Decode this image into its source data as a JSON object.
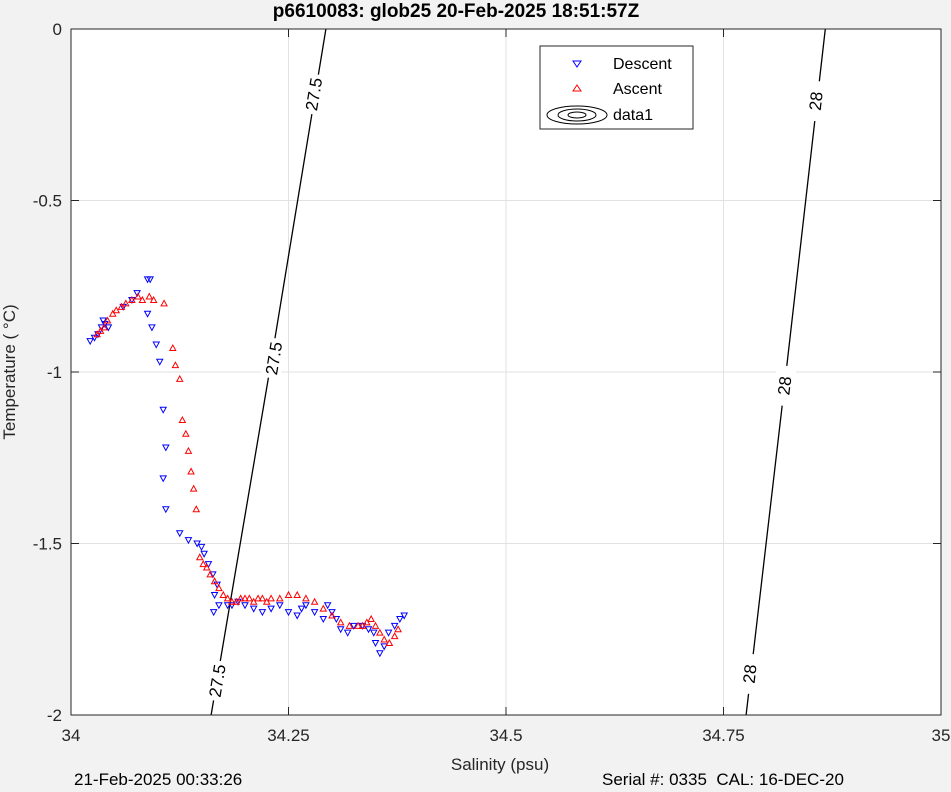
{
  "chart_data": {
    "type": "scatter",
    "title": "p6610083: glob25 20-Feb-2025 18:51:57Z",
    "xlabel": "Salinity (psu)",
    "ylabel": "Temperature (  °C)",
    "xlim": [
      34,
      35
    ],
    "ylim": [
      -2,
      0
    ],
    "xticks": [
      "34",
      "34.25",
      "34.5",
      "34.75",
      "35"
    ],
    "yticks": [
      "0",
      "-0.5",
      "-1",
      "-1.5",
      "-2"
    ],
    "xtick_values": [
      34,
      34.25,
      34.5,
      34.75,
      35
    ],
    "ytick_values": [
      0,
      -0.5,
      -1,
      -1.5,
      -2
    ],
    "grid": true,
    "legend": {
      "placement": "top-center",
      "entries": [
        {
          "label": "Descent",
          "color": "#0000ff",
          "marker": "triangle-down"
        },
        {
          "label": "Ascent",
          "color": "#ff0000",
          "marker": "triangle-up"
        },
        {
          "label": "data1",
          "color": "#000000",
          "marker": "contour"
        }
      ]
    },
    "contours": [
      {
        "level_label": "27.5",
        "points": [
          [
            34.161,
            -2.0
          ],
          [
            34.228,
            -1.0
          ],
          [
            34.293,
            0.0
          ]
        ],
        "label_positions": [
          [
            34.168,
            -1.9
          ],
          [
            34.233,
            -0.96
          ],
          [
            34.279,
            -0.19
          ]
        ]
      },
      {
        "level_label": "28",
        "points": [
          [
            34.776,
            -2.0
          ],
          [
            34.822,
            -1.0
          ],
          [
            34.867,
            0.0
          ]
        ],
        "label_positions": [
          [
            34.78,
            -1.88
          ],
          [
            34.82,
            -1.04
          ],
          [
            34.856,
            -0.21
          ]
        ]
      }
    ],
    "series": [
      {
        "name": "Descent",
        "color": "#0000ff",
        "marker": "triangle-down",
        "points": [
          [
            34.022,
            -0.91
          ],
          [
            34.027,
            -0.9
          ],
          [
            34.031,
            -0.89
          ],
          [
            34.035,
            -0.87
          ],
          [
            34.039,
            -0.86
          ],
          [
            34.043,
            -0.87
          ],
          [
            34.037,
            -0.85
          ],
          [
            34.06,
            -0.81
          ],
          [
            34.07,
            -0.79
          ],
          [
            34.076,
            -0.77
          ],
          [
            34.088,
            -0.73
          ],
          [
            34.091,
            -0.73
          ],
          [
            34.088,
            -0.83
          ],
          [
            34.093,
            -0.87
          ],
          [
            34.098,
            -0.92
          ],
          [
            34.102,
            -0.97
          ],
          [
            34.106,
            -1.11
          ],
          [
            34.109,
            -1.22
          ],
          [
            34.106,
            -1.31
          ],
          [
            34.109,
            -1.4
          ],
          [
            34.125,
            -1.47
          ],
          [
            34.135,
            -1.49
          ],
          [
            34.145,
            -1.5
          ],
          [
            34.15,
            -1.51
          ],
          [
            34.153,
            -1.53
          ],
          [
            34.158,
            -1.56
          ],
          [
            34.163,
            -1.59
          ],
          [
            34.168,
            -1.62
          ],
          [
            34.165,
            -1.65
          ],
          [
            34.17,
            -1.68
          ],
          [
            34.164,
            -1.7
          ],
          [
            34.18,
            -1.68
          ],
          [
            34.185,
            -1.68
          ],
          [
            34.192,
            -1.67
          ],
          [
            34.2,
            -1.68
          ],
          [
            34.21,
            -1.69
          ],
          [
            34.22,
            -1.7
          ],
          [
            34.23,
            -1.69
          ],
          [
            34.24,
            -1.68
          ],
          [
            34.25,
            -1.7
          ],
          [
            34.26,
            -1.71
          ],
          [
            34.265,
            -1.69
          ],
          [
            34.27,
            -1.68
          ],
          [
            34.28,
            -1.7
          ],
          [
            34.29,
            -1.72
          ],
          [
            34.295,
            -1.68
          ],
          [
            34.3,
            -1.7
          ],
          [
            34.305,
            -1.72
          ],
          [
            34.31,
            -1.75
          ],
          [
            34.318,
            -1.76
          ],
          [
            34.325,
            -1.74
          ],
          [
            34.335,
            -1.74
          ],
          [
            34.342,
            -1.75
          ],
          [
            34.348,
            -1.76
          ],
          [
            34.35,
            -1.79
          ],
          [
            34.355,
            -1.82
          ],
          [
            34.36,
            -1.8
          ],
          [
            34.365,
            -1.76
          ],
          [
            34.372,
            -1.74
          ],
          [
            34.378,
            -1.72
          ],
          [
            34.383,
            -1.71
          ]
        ]
      },
      {
        "name": "Ascent",
        "color": "#ff0000",
        "marker": "triangle-up",
        "points": [
          [
            34.03,
            -0.89
          ],
          [
            34.034,
            -0.88
          ],
          [
            34.038,
            -0.87
          ],
          [
            34.042,
            -0.85
          ],
          [
            34.048,
            -0.83
          ],
          [
            34.052,
            -0.82
          ],
          [
            34.058,
            -0.81
          ],
          [
            34.063,
            -0.8
          ],
          [
            34.07,
            -0.79
          ],
          [
            34.077,
            -0.78
          ],
          [
            34.082,
            -0.79
          ],
          [
            34.09,
            -0.78
          ],
          [
            34.095,
            -0.79
          ],
          [
            34.107,
            -0.8
          ],
          [
            34.117,
            -0.93
          ],
          [
            34.12,
            -0.98
          ],
          [
            34.125,
            -1.02
          ],
          [
            34.128,
            -1.14
          ],
          [
            34.132,
            -1.18
          ],
          [
            34.135,
            -1.23
          ],
          [
            34.138,
            -1.29
          ],
          [
            34.141,
            -1.34
          ],
          [
            34.144,
            -1.4
          ],
          [
            34.148,
            -1.54
          ],
          [
            34.152,
            -1.56
          ],
          [
            34.156,
            -1.57
          ],
          [
            34.16,
            -1.59
          ],
          [
            34.165,
            -1.61
          ],
          [
            34.17,
            -1.63
          ],
          [
            34.175,
            -1.65
          ],
          [
            34.18,
            -1.66
          ],
          [
            34.185,
            -1.67
          ],
          [
            34.19,
            -1.67
          ],
          [
            34.195,
            -1.66
          ],
          [
            34.2,
            -1.66
          ],
          [
            34.205,
            -1.66
          ],
          [
            34.21,
            -1.67
          ],
          [
            34.215,
            -1.66
          ],
          [
            34.22,
            -1.66
          ],
          [
            34.225,
            -1.67
          ],
          [
            34.23,
            -1.66
          ],
          [
            34.24,
            -1.66
          ],
          [
            34.25,
            -1.65
          ],
          [
            34.26,
            -1.65
          ],
          [
            34.27,
            -1.66
          ],
          [
            34.28,
            -1.67
          ],
          [
            34.29,
            -1.69
          ],
          [
            34.3,
            -1.71
          ],
          [
            34.31,
            -1.73
          ],
          [
            34.32,
            -1.74
          ],
          [
            34.33,
            -1.74
          ],
          [
            34.335,
            -1.74
          ],
          [
            34.34,
            -1.73
          ],
          [
            34.345,
            -1.72
          ],
          [
            34.35,
            -1.74
          ],
          [
            34.355,
            -1.76
          ],
          [
            34.36,
            -1.78
          ],
          [
            34.366,
            -1.79
          ],
          [
            34.372,
            -1.77
          ],
          [
            34.376,
            -1.75
          ]
        ]
      }
    ]
  },
  "footer": {
    "left": "21-Feb-2025 00:33:26",
    "right": "Serial #: 0335  CAL: 16-DEC-20"
  }
}
